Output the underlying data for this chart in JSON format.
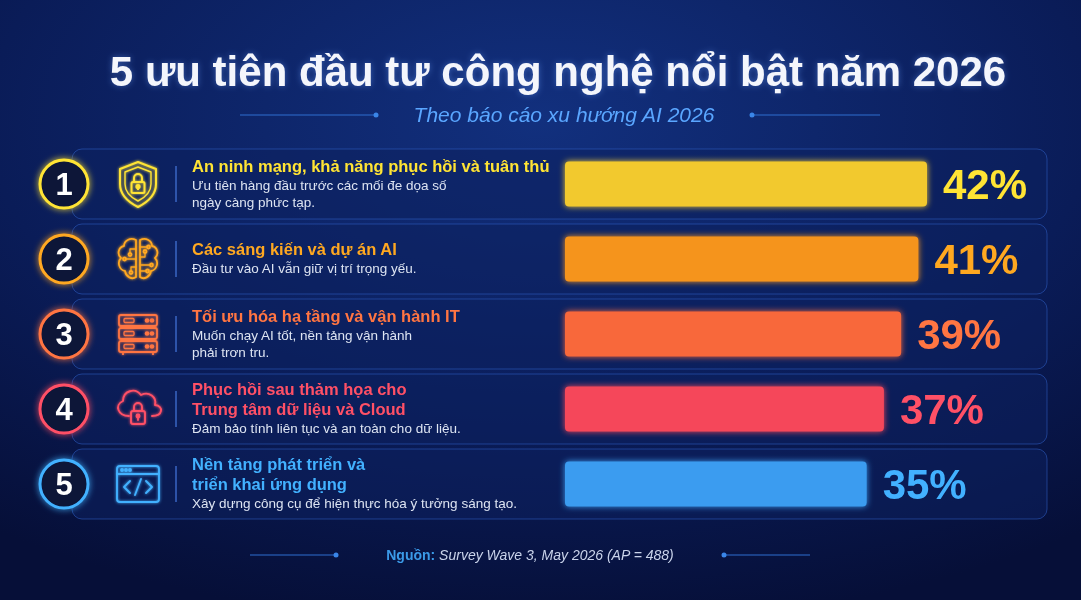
{
  "chart_data": {
    "type": "bar",
    "orientation": "horizontal",
    "title": "5 ưu tiên đầu tư công nghệ nổi bật năm 2026",
    "subtitle": "Theo báo cáo xu hướng AI 2026",
    "categories": [
      "An ninh mạng, khả năng phục hồi và tuân thủ",
      "Các sáng kiến và dự án AI",
      "Tối ưu hóa hạ tầng và vận hành IT",
      "Phục hồi sau thảm họa cho\nTrung tâm dữ liệu và Cloud",
      "Nền tảng phát triển và\ntriển khai ứng dụng"
    ],
    "values": [
      42,
      41,
      39,
      37,
      35
    ],
    "colors": [
      "#f2c92e",
      "#f5941c",
      "#f8673a",
      "#f5475a",
      "#3a9cf0"
    ],
    "value_labels": [
      "42%",
      "41%",
      "39%",
      "37%",
      "35%"
    ],
    "tick_labels": "y",
    "annotations": [
      "1",
      "Ưu tiên hàng đầu trước các mối đe dọa số\nngày càng phức tạp.",
      "2",
      "Đầu tư vào AI vẫn giữ vị trí trọng yếu.",
      "3",
      "Muốn chạy AI tốt, nền tảng vận hành\nphải trơn tru.",
      "4",
      "Đảm bảo tính liên tục và an toàn cho dữ liệu.",
      "5",
      "Xây dựng công cụ để hiện thực hóa ý tưởng sáng tạo.",
      "Nguồn: Survey Wave 3, May 2026 (AP = 488)"
    ]
  }
}
